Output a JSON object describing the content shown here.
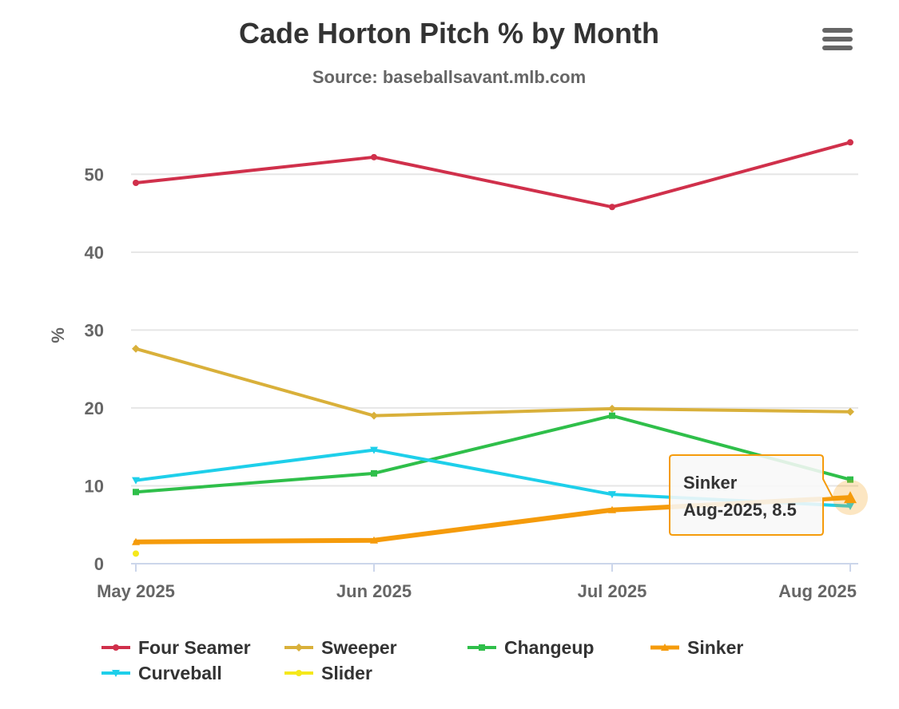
{
  "chart_data": {
    "type": "line",
    "title": "Cade Horton Pitch % by Month",
    "subtitle": "Source: baseballsavant.mlb.com",
    "xlabel": "",
    "ylabel": "%",
    "categories": [
      "May 2025",
      "Jun 2025",
      "Jul 2025",
      "Aug 2025"
    ],
    "ylim": [
      0,
      57
    ],
    "yticks": [
      0,
      10,
      20,
      30,
      40,
      50
    ],
    "grid": true,
    "legend_position": "bottom",
    "series": [
      {
        "name": "Four Seamer",
        "color": "#d0304b",
        "marker": "circle",
        "values": [
          48.9,
          52.2,
          45.8,
          54.1
        ]
      },
      {
        "name": "Sweeper",
        "color": "#d9b03a",
        "marker": "diamond",
        "values": [
          27.6,
          19.0,
          19.9,
          19.5
        ]
      },
      {
        "name": "Changeup",
        "color": "#2fbf4a",
        "marker": "square",
        "values": [
          9.2,
          11.6,
          19.0,
          10.8
        ]
      },
      {
        "name": "Sinker",
        "color": "#f59b0b",
        "marker": "triangle",
        "values": [
          2.8,
          3.0,
          6.9,
          8.5
        ]
      },
      {
        "name": "Curveball",
        "color": "#1ecfea",
        "marker": "triangle-down",
        "values": [
          10.7,
          14.6,
          8.9,
          7.4
        ]
      },
      {
        "name": "Slider",
        "color": "#f5e81b",
        "marker": "circle",
        "values": [
          1.3,
          null,
          null,
          null
        ]
      }
    ],
    "tooltip": {
      "series": "Sinker",
      "line1": "Sinker",
      "line2": "Aug-2025, 8.5",
      "category_index": 3,
      "value": 8.5
    }
  },
  "ui": {
    "menu_icon": "hamburger-menu-icon"
  }
}
